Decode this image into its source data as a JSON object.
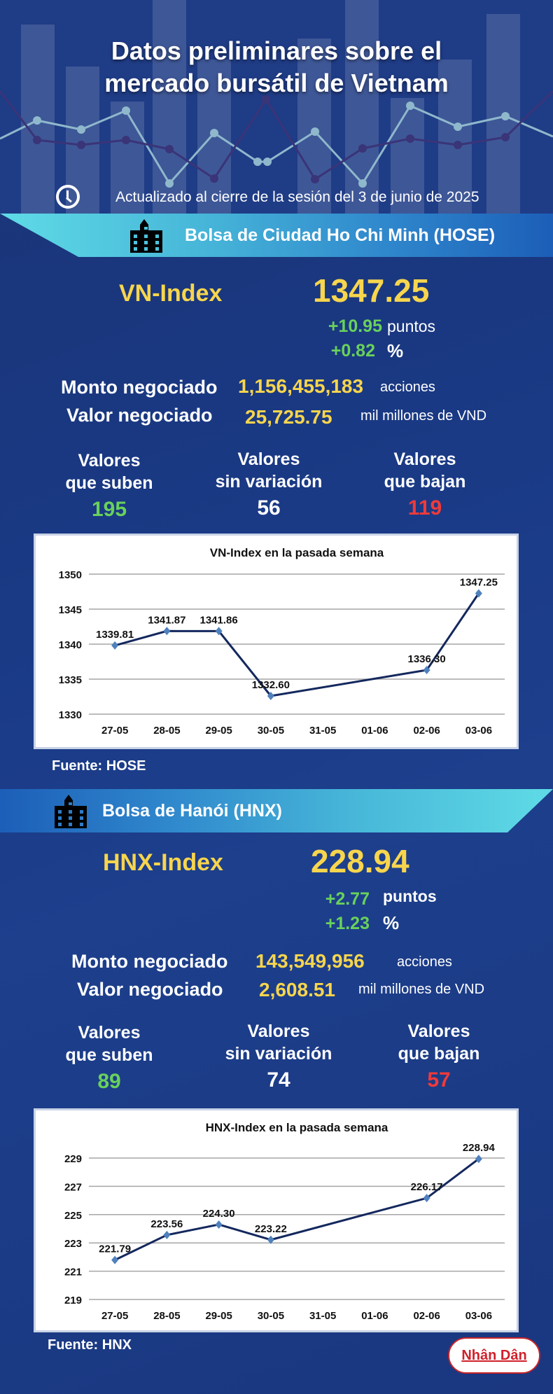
{
  "header": {
    "title_line1": "Datos preliminares sobre el",
    "title_line2": "mercado bursátil de Vietnam",
    "updated": "Actualizado al cierre de la sesión del 3 de junio de 2025",
    "icon": "clock-icon"
  },
  "hose": {
    "band_title": "Bolsa de Ciudad Ho Chi Minh (HOSE)",
    "index_name": "VN-Index",
    "index_value": "1347.25",
    "change_points": "+10.95",
    "change_points_unit": "puntos",
    "change_pct": "+0.82",
    "change_pct_unit": "%",
    "volume_label": "Monto negociado",
    "volume_value": "1,156,455,183",
    "volume_unit": "acciones",
    "value_label": "Valor negociado",
    "value_value": "25,725.75",
    "value_unit": "mil millones de VND",
    "up_label_1": "Valores",
    "up_label_2": "que suben",
    "up_count": "195",
    "flat_label_1": "Valores",
    "flat_label_2": "sin variación",
    "flat_count": "56",
    "down_label_1": "Valores",
    "down_label_2": "que bajan",
    "down_count": "119",
    "source": "Fuente: HOSE"
  },
  "hnx": {
    "band_title": "Bolsa de Hanói (HNX)",
    "index_name": "HNX-Index",
    "index_value": "228.94",
    "change_points": "+2.77",
    "change_points_unit": "puntos",
    "change_pct": "+1.23",
    "change_pct_unit": "%",
    "volume_label": "Monto negociado",
    "volume_value": "143,549,956",
    "volume_unit": "acciones",
    "value_label": "Valor negociado",
    "value_value": "2,608.51",
    "value_unit": "mil millones de VND",
    "up_label_1": "Valores",
    "up_label_2": "que suben",
    "up_count": "89",
    "flat_label_1": "Valores",
    "flat_label_2": "sin variación",
    "flat_count": "74",
    "down_label_1": "Valores",
    "down_label_2": "que bajan",
    "down_count": "57",
    "source": "Fuente:  HNX"
  },
  "footer": {
    "logo_text": "Nhân Dân"
  },
  "colors": {
    "background": "#1a3780",
    "accent_yellow": "#f7d54d",
    "up_green": "#69d15c",
    "down_red": "#f03a3a",
    "band_cyan": "#5fdbe6",
    "line_navy": "#14285e",
    "marker_blue": "#4f81bd"
  },
  "chart_data": [
    {
      "type": "line",
      "title": "VN-Index en la pasada semana",
      "categories": [
        "27-05",
        "28-05",
        "29-05",
        "30-05",
        "31-05",
        "01-06",
        "02-06",
        "03-06"
      ],
      "series": [
        {
          "name": "VN-Index",
          "values": [
            1339.81,
            1341.87,
            1341.86,
            1332.6,
            null,
            null,
            1336.3,
            1347.25
          ]
        }
      ],
      "data_labels": [
        "1339.81",
        "1341.87",
        "1341.86",
        "1332.60",
        "",
        "",
        "1336.30",
        "1347.25"
      ],
      "yticks": [
        "1350",
        "1345",
        "1340",
        "1335",
        "1330"
      ],
      "ylim": [
        1330,
        1350
      ],
      "xlabel": "",
      "ylabel": "",
      "grid": true,
      "legend": "none"
    },
    {
      "type": "line",
      "title": "HNX-Index en la pasada semana",
      "categories": [
        "27-05",
        "28-05",
        "29-05",
        "30-05",
        "31-05",
        "01-06",
        "02-06",
        "03-06"
      ],
      "series": [
        {
          "name": "HNX-Index",
          "values": [
            221.79,
            223.56,
            224.3,
            223.22,
            null,
            null,
            226.17,
            228.94
          ]
        }
      ],
      "data_labels": [
        "221.79",
        "223.56",
        "224.30",
        "223.22",
        "",
        "",
        "226.17",
        "228.94"
      ],
      "yticks": [
        "229",
        "227",
        "225",
        "223",
        "221",
        "219"
      ],
      "ylim": [
        219,
        229
      ],
      "xlabel": "",
      "ylabel": "",
      "grid": true,
      "legend": "none"
    }
  ]
}
